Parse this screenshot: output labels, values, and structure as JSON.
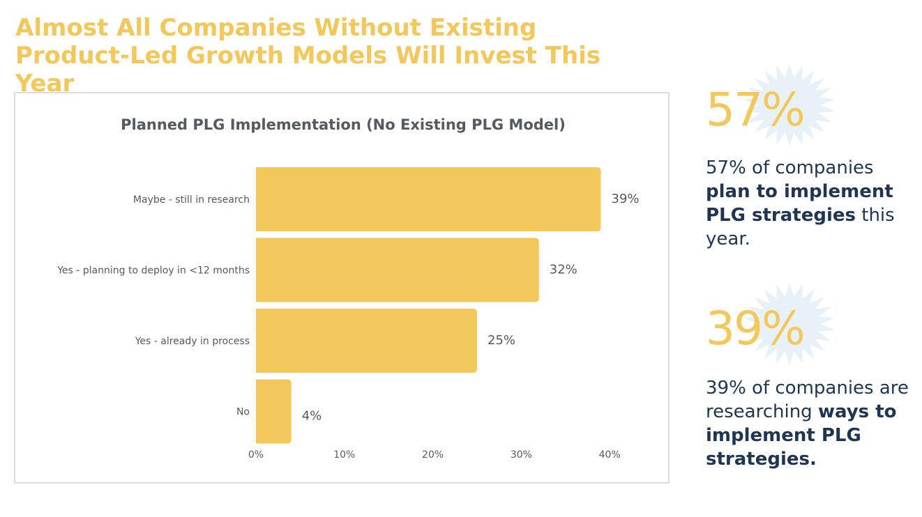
{
  "header": {
    "title": "Almost All Companies Without Existing Product-Led Growth Models Will Invest This Year"
  },
  "colors": {
    "title": "#f2c75c",
    "bar": "#f2c75c",
    "stat_number": "#f2c75c",
    "stat_text": "#1f3552",
    "burst": "#e8f0f8"
  },
  "chart_data": {
    "type": "bar",
    "orientation": "horizontal",
    "title": "Planned PLG Implementation (No Existing PLG Model)",
    "categories": [
      "Maybe - still in research",
      "Yes - planning to deploy in <12 months",
      "Yes - already in process",
      "No"
    ],
    "values": [
      39,
      32,
      25,
      4
    ],
    "value_labels": [
      "39%",
      "32%",
      "25%",
      "4%"
    ],
    "xlim": [
      0,
      40
    ],
    "xticks": [
      0,
      10,
      20,
      30,
      40
    ],
    "xtick_labels": [
      "0%",
      "10%",
      "20%",
      "30%",
      "40%"
    ],
    "xlabel": "",
    "ylabel": "",
    "grid": false
  },
  "stats": [
    {
      "number": "57%",
      "text_before": "57% of companies ",
      "text_bold": "plan to implement PLG strategies",
      "text_after": " this year."
    },
    {
      "number": "39%",
      "text_before": "39% of companies are researching ",
      "text_bold": "ways to implement PLG strategies.",
      "text_after": ""
    }
  ]
}
